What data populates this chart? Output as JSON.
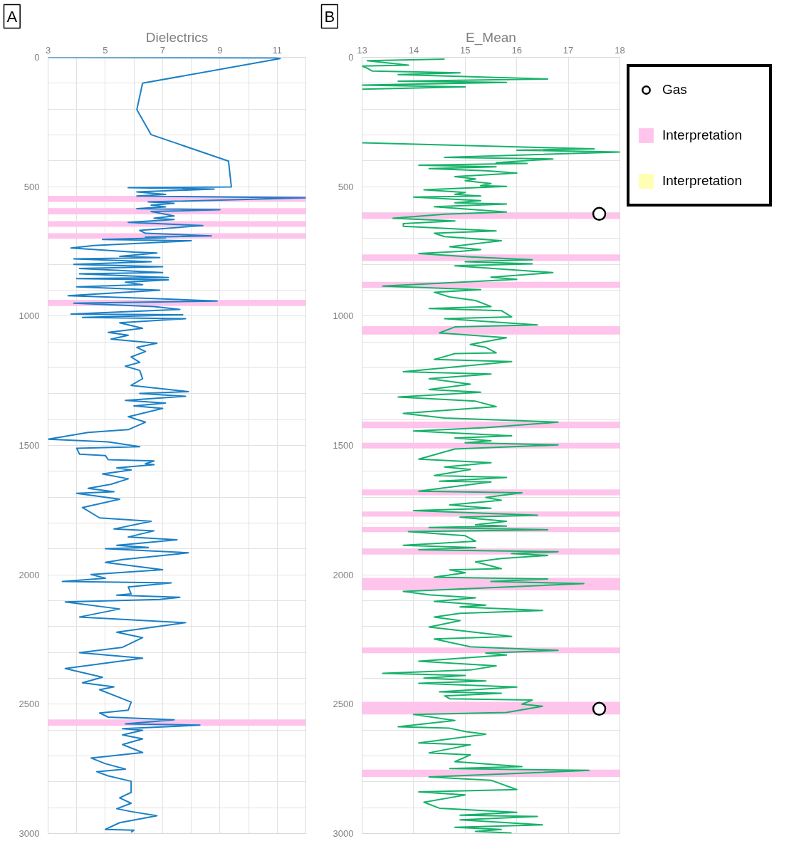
{
  "chart_data": [
    {
      "type": "line",
      "title": "Dielectrics",
      "annotations": [
        "A"
      ],
      "xlim": [
        3,
        12
      ],
      "xticks": [
        3,
        {
          "value": 4,
          "label": null
        },
        5,
        {
          "value": 6,
          "label": null
        },
        7,
        {
          "value": 8,
          "label": null
        },
        9,
        {
          "value": 10,
          "label": null
        },
        11,
        {
          "value": 12,
          "label": null
        }
      ],
      "ylim": [
        3000,
        0
      ],
      "yticks": [
        0,
        {
          "value": 100,
          "label": null
        },
        {
          "value": 200,
          "label": null
        },
        {
          "value": 300,
          "label": null
        },
        {
          "value": 400,
          "label": null
        },
        500,
        {
          "value": 600,
          "label": null
        },
        {
          "value": 700,
          "label": null
        },
        {
          "value": 800,
          "label": null
        },
        {
          "value": 900,
          "label": null
        },
        1000,
        {
          "value": 1100,
          "label": null
        },
        {
          "value": 1200,
          "label": null
        },
        {
          "value": 1300,
          "label": null
        },
        {
          "value": 1400,
          "label": null
        },
        1500,
        {
          "value": 1600,
          "label": null
        },
        {
          "value": 1700,
          "label": null
        },
        {
          "value": 1800,
          "label": null
        },
        {
          "value": 1900,
          "label": null
        },
        2000,
        {
          "value": 2100,
          "label": null
        },
        {
          "value": 2200,
          "label": null
        },
        {
          "value": 2300,
          "label": null
        },
        {
          "value": 2400,
          "label": null
        },
        2500,
        {
          "value": 2600,
          "label": null
        },
        {
          "value": 2700,
          "label": null
        },
        {
          "value": 2800,
          "label": null
        },
        {
          "value": 2900,
          "label": null
        },
        3000
      ],
      "grid": true,
      "bands": [
        {
          "axis": "y",
          "from": 535,
          "to": 559,
          "color": "#ffc4eb"
        },
        {
          "axis": "y",
          "from": 583,
          "to": 607,
          "color": "#ffc4eb"
        },
        {
          "axis": "y",
          "from": 633,
          "to": 655,
          "color": "#ffc4eb"
        },
        {
          "axis": "y",
          "from": 680,
          "to": 701,
          "color": "#ffc4eb"
        },
        {
          "axis": "y",
          "from": 937,
          "to": 961,
          "color": "#ffc4eb"
        },
        {
          "axis": "y",
          "from": 2559,
          "to": 2584,
          "color": "#ffc4eb"
        }
      ],
      "series": [
        {
          "type": "line",
          "color": "#1b80c6",
          "x": [
            3.0,
            10.9,
            11.1,
            6.3,
            6.1,
            6.6,
            9.3,
            9.4,
            5.8,
            8.8,
            6.1,
            7.1,
            6.1,
            12.0,
            6.5,
            7.4,
            6.6,
            7.1,
            6.1,
            9.0,
            6.6,
            7.4,
            6.7,
            7.4,
            5.8,
            8.4,
            6.2,
            6.4,
            8.7,
            6.4,
            7.1,
            4.9,
            8.0,
            4.6,
            3.8,
            6.0,
            6.8,
            5.5,
            6.9,
            3.9,
            6.6,
            3.9,
            7.0,
            4.1,
            7.0,
            4.1,
            7.2,
            4.0,
            7.2,
            5.7,
            6.3,
            4.0,
            6.9,
            3.7,
            6.7,
            8.9,
            3.9,
            6.7,
            7.6,
            3.8,
            7.7,
            4.2,
            7.8,
            5.5,
            6.3,
            5.1,
            5.8,
            5.2,
            6.8,
            6.1,
            6.4,
            5.9,
            6.2,
            5.7,
            6.2,
            6.3,
            5.9,
            7.9,
            6.2,
            7.8,
            5.7,
            7.1,
            6.0,
            7.0,
            5.8,
            6.4,
            5.8,
            4.4,
            3.0,
            5.1,
            6.2,
            4.0,
            4.1,
            5.0,
            5.1,
            6.7,
            6.4,
            6.7,
            5.4,
            5.9,
            4.9,
            5.8,
            5.2,
            4.4,
            5.3,
            4.0,
            5.5,
            4.2,
            4.8,
            6.6,
            5.3,
            6.7,
            5.8,
            7.5,
            5.4,
            6.5,
            5.0,
            7.9,
            5.6,
            5.0,
            7.0,
            4.5,
            5.0,
            3.5,
            7.3,
            5.8,
            5.9,
            5.4,
            7.6,
            6.9,
            3.6,
            5.5,
            4.1,
            7.8,
            5.4,
            6.3,
            5.6,
            4.1,
            6.3,
            3.6,
            4.9,
            4.2,
            5.3,
            4.8,
            5.9,
            5.8,
            4.8,
            5.1,
            7.4,
            5.7,
            8.3,
            5.6,
            6.3,
            5.6,
            6.3,
            5.6,
            6.3,
            4.5,
            5.0,
            5.7,
            4.7,
            5.1,
            5.9,
            5.9,
            5.5,
            5.9,
            5.4,
            5.9,
            6.8,
            5.5,
            5.0,
            6.0,
            5.9
          ],
          "values": [
            0,
            2,
            5,
            100,
            202,
            299,
            401,
            501,
            504,
            509,
            520,
            530,
            536,
            543,
            559,
            564,
            571,
            578,
            585,
            589,
            596,
            613,
            622,
            627,
            638,
            650,
            669,
            680,
            690,
            695,
            698,
            704,
            709,
            727,
            737,
            753,
            756,
            769,
            774,
            779,
            790,
            800,
            809,
            816,
            832,
            837,
            851,
            855,
            860,
            869,
            879,
            887,
            900,
            921,
            932,
            942,
            950,
            963,
            974,
            992,
            995,
            1005,
            1010,
            1026,
            1047,
            1063,
            1074,
            1089,
            1105,
            1121,
            1137,
            1158,
            1179,
            1194,
            1210,
            1242,
            1268,
            1292,
            1299,
            1310,
            1326,
            1336,
            1347,
            1357,
            1389,
            1410,
            1439,
            1450,
            1476,
            1486,
            1505,
            1511,
            1534,
            1539,
            1555,
            1560,
            1571,
            1574,
            1587,
            1595,
            1610,
            1629,
            1650,
            1666,
            1679,
            1685,
            1708,
            1740,
            1780,
            1793,
            1823,
            1830,
            1854,
            1865,
            1886,
            1894,
            1899,
            1915,
            1941,
            1952,
            1980,
            1999,
            2013,
            2026,
            2031,
            2047,
            2074,
            2079,
            2087,
            2095,
            2105,
            2132,
            2163,
            2185,
            2222,
            2243,
            2280,
            2301,
            2322,
            2362,
            2396,
            2417,
            2433,
            2444,
            2492,
            2523,
            2534,
            2550,
            2560,
            2576,
            2581,
            2595,
            2601,
            2619,
            2634,
            2656,
            2687,
            2708,
            2730,
            2751,
            2761,
            2777,
            2798,
            2841,
            2862,
            2883,
            2904,
            2915,
            2931,
            2958,
            2984,
            2987,
            2995
          ]
        }
      ]
    },
    {
      "type": "line",
      "title": "E_Mean",
      "annotations": [
        "B"
      ],
      "xlim": [
        13,
        18
      ],
      "xticks": [
        13,
        14,
        15,
        16,
        17,
        18
      ],
      "ylim": [
        3000,
        0
      ],
      "yticks": [
        0,
        {
          "value": 100,
          "label": null
        },
        {
          "value": 200,
          "label": null
        },
        {
          "value": 300,
          "label": null
        },
        {
          "value": 400,
          "label": null
        },
        500,
        {
          "value": 600,
          "label": null
        },
        {
          "value": 700,
          "label": null
        },
        {
          "value": 800,
          "label": null
        },
        {
          "value": 900,
          "label": null
        },
        1000,
        {
          "value": 1100,
          "label": null
        },
        {
          "value": 1200,
          "label": null
        },
        {
          "value": 1300,
          "label": null
        },
        {
          "value": 1400,
          "label": null
        },
        1500,
        {
          "value": 1600,
          "label": null
        },
        {
          "value": 1700,
          "label": null
        },
        {
          "value": 1800,
          "label": null
        },
        {
          "value": 1900,
          "label": null
        },
        2000,
        {
          "value": 2100,
          "label": null
        },
        {
          "value": 2200,
          "label": null
        },
        {
          "value": 2300,
          "label": null
        },
        {
          "value": 2400,
          "label": null
        },
        2500,
        {
          "value": 2600,
          "label": null
        },
        {
          "value": 2700,
          "label": null
        },
        {
          "value": 2800,
          "label": null
        },
        {
          "value": 2900,
          "label": null
        },
        3000
      ],
      "grid": true,
      "legend": "right",
      "bands": [
        {
          "axis": "y",
          "from": 601,
          "to": 625,
          "color": "#ffc4eb"
        },
        {
          "axis": "y",
          "from": 762,
          "to": 787,
          "color": "#ffc4eb"
        },
        {
          "axis": "y",
          "from": 868,
          "to": 891,
          "color": "#ffc4eb"
        },
        {
          "axis": "y",
          "from": 1039,
          "to": 1071,
          "color": "#ffc4eb"
        },
        {
          "axis": "y",
          "from": 1408,
          "to": 1433,
          "color": "#ffc4eb"
        },
        {
          "axis": "y",
          "from": 1490,
          "to": 1512,
          "color": "#ffc4eb"
        },
        {
          "axis": "y",
          "from": 1670,
          "to": 1693,
          "color": "#ffc4eb"
        },
        {
          "axis": "y",
          "from": 1755,
          "to": 1775,
          "color": "#ffc4eb"
        },
        {
          "axis": "y",
          "from": 1815,
          "to": 1835,
          "color": "#ffc4eb"
        },
        {
          "axis": "y",
          "from": 1899,
          "to": 1922,
          "color": "#ffc4eb"
        },
        {
          "axis": "y",
          "from": 2012,
          "to": 2060,
          "color": "#ffc4eb"
        },
        {
          "axis": "y",
          "from": 2281,
          "to": 2303,
          "color": "#ffc4eb"
        },
        {
          "axis": "y",
          "from": 2491,
          "to": 2540,
          "color": "#ffc4eb"
        },
        {
          "axis": "y",
          "from": 2753,
          "to": 2781,
          "color": "#ffc4eb"
        }
      ],
      "series": [
        {
          "type": "line",
          "color": "#17b26a",
          "x": [
            14.6,
            13.1,
            13.9,
            13.0,
            13.1,
            13.2,
            14.9,
            13.7,
            16.6,
            13.7,
            15.8,
            13.0,
            15.0,
            13.0,
            null,
            13.0,
            17.5,
            16.0,
            18.0,
            14.6,
            16.7,
            15.6,
            16.2,
            14.1,
            15.6,
            14.3,
            15.4,
            16.0,
            14.8,
            15.2,
            15.0,
            15.5,
            15.3,
            15.8,
            14.2,
            15.0,
            14.8,
            15.3,
            14.0,
            15.3,
            14.8,
            15.8,
            14.4,
            15.8,
            14.6,
            13.6,
            14.8,
            13.8,
            13.8,
            15.6,
            14.4,
            14.6,
            15.7,
            14.7,
            15.3,
            14.9,
            14.1,
            15.1,
            16.3,
            15.0,
            16.3,
            14.8,
            16.7,
            15.5,
            16.0,
            13.4,
            15.3,
            14.4,
            14.7,
            15.2,
            15.5,
            14.3,
            15.7,
            15.9,
            14.6,
            16.4,
            14.8,
            14.5,
            15.8,
            15.1,
            15.4,
            15.6,
            14.8,
            14.4,
            15.9,
            13.8,
            15.5,
            14.3,
            15.1,
            14.3,
            15.3,
            13.7,
            15.2,
            15.6,
            13.8,
            14.6,
            16.8,
            15.4,
            14.0,
            15.9,
            14.8,
            15.5,
            15.0,
            16.8,
            14.8,
            14.1,
            15.5,
            14.6,
            15.1,
            14.4,
            15.8,
            14.5,
            15.5,
            14.6,
            14.1,
            16.1,
            15.4,
            15.7,
            14.7,
            15.5,
            14.0,
            16.4,
            14.9,
            15.8,
            15.2,
            15.8,
            14.3,
            16.6,
            13.9,
            15.0,
            15.2,
            13.8,
            15.2,
            14.1,
            16.8,
            15.9,
            16.6,
            15.7,
            15.2,
            15.7,
            14.7,
            15.0,
            14.4,
            16.6,
            15.5,
            17.3,
            13.8,
            14.3,
            15.2,
            14.4,
            15.4,
            14.9,
            16.5,
            14.9,
            14.4,
            14.9,
            14.3,
            15.9,
            14.4,
            15.1,
            16.8,
            15.4,
            15.8,
            14.1,
            15.6,
            15.1,
            13.4,
            15.0,
            14.2,
            15.4,
            14.1,
            16.0,
            14.5,
            15.7,
            14.6,
            14.7,
            16.3,
            16.1,
            16.5,
            15.8,
            14.0,
            14.8,
            13.7,
            14.7,
            15.0,
            15.4,
            14.1,
            15.1,
            14.3,
            15.1,
            14.8,
            16.1,
            14.7,
            17.4,
            16.1,
            14.3,
            15.5,
            16.0,
            14.1,
            15.0,
            14.2,
            14.5,
            16.0,
            14.9,
            16.4,
            14.9,
            16.5,
            14.8,
            15.7,
            15.2,
            15.9
          ],
          "values": [
            7,
            13,
            30,
            34,
            42,
            53,
            60,
            67,
            84,
            92,
            97,
            107,
            114,
            123,
            null,
            330,
            354,
            359,
            366,
            387,
            393,
            407,
            410,
            417,
            423,
            430,
            438,
            447,
            461,
            470,
            477,
            488,
            496,
            499,
            512,
            522,
            530,
            536,
            540,
            554,
            562,
            567,
            577,
            598,
            606,
            622,
            632,
            643,
            653,
            671,
            680,
            693,
            709,
            732,
            743,
            750,
            758,
            771,
            782,
            790,
            798,
            806,
            832,
            850,
            858,
            884,
            898,
            908,
            926,
            940,
            963,
            971,
            979,
            1003,
            1010,
            1034,
            1042,
            1065,
            1084,
            1110,
            1121,
            1142,
            1145,
            1168,
            1176,
            1215,
            1224,
            1242,
            1263,
            1284,
            1294,
            1313,
            1329,
            1350,
            1376,
            1394,
            1410,
            1431,
            1444,
            1463,
            1471,
            1482,
            1490,
            1498,
            1514,
            1553,
            1567,
            1583,
            1593,
            1616,
            1624,
            1638,
            1641,
            1664,
            1677,
            1683,
            1701,
            1712,
            1730,
            1743,
            1752,
            1770,
            1777,
            1793,
            1807,
            1812,
            1817,
            1826,
            1833,
            1849,
            1870,
            1886,
            1895,
            1903,
            1911,
            1918,
            1925,
            1937,
            1950,
            1976,
            1981,
            1992,
            2009,
            2016,
            2026,
            2034,
            2064,
            2077,
            2089,
            2103,
            2117,
            2124,
            2138,
            2149,
            2163,
            2177,
            2202,
            2238,
            2248,
            2278,
            2292,
            2302,
            2310,
            2334,
            2352,
            2368,
            2381,
            2389,
            2399,
            2410,
            2419,
            2434,
            2452,
            2458,
            2468,
            2479,
            2484,
            2500,
            2508,
            2532,
            2540,
            2563,
            2587,
            2593,
            2606,
            2616,
            2650,
            2657,
            2688,
            2696,
            2722,
            2741,
            2749,
            2756,
            2767,
            2781,
            2794,
            2830,
            2839,
            2851,
            2879,
            2902,
            2918,
            2929,
            2934,
            2947,
            2966,
            2976,
            2984,
            2992,
            2998
          ]
        },
        {
          "type": "scatter",
          "name": "Gas",
          "color": "#000000",
          "marker": "circle",
          "x": [
            17.6,
            17.6
          ],
          "values": [
            605,
            2518
          ]
        },
        {
          "type": "area",
          "name": "Interpretation",
          "color": "#ffc4eb"
        },
        {
          "type": "area",
          "name": "Interpretation",
          "color": "#ffffb3"
        }
      ]
    }
  ]
}
